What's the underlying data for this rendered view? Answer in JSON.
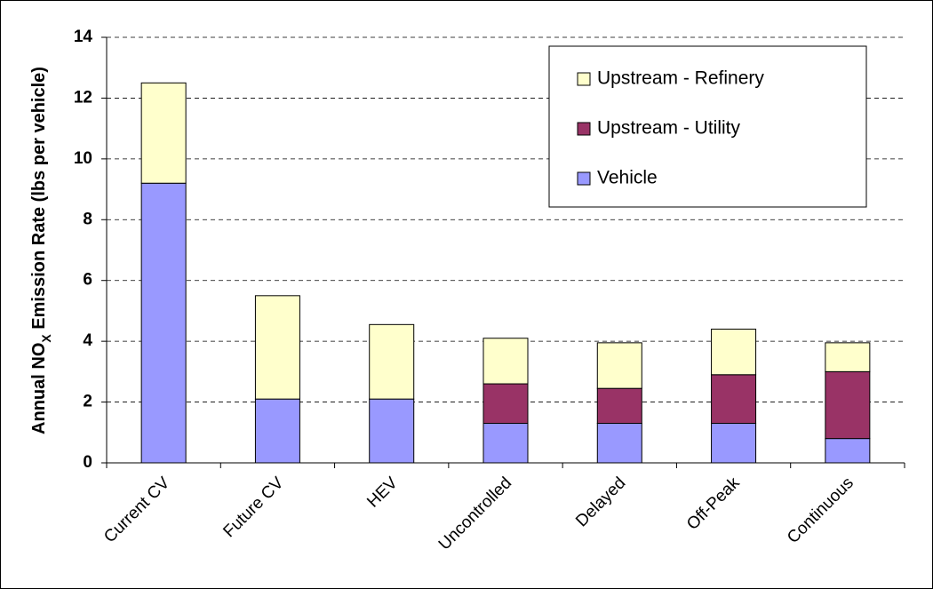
{
  "chart_data": {
    "type": "stacked_bar",
    "y_label_parts": [
      "Annual NO",
      "X",
      " Emission Rate (lbs per vehicle)"
    ],
    "categories": [
      "Current CV",
      "Future CV",
      "HEV",
      "Uncontrolled",
      "Delayed",
      "Off-Peak",
      "Continuous"
    ],
    "series": [
      {
        "name": "Vehicle",
        "color": "#9999ff",
        "values": [
          9.2,
          2.1,
          2.1,
          1.3,
          1.3,
          1.3,
          0.8
        ]
      },
      {
        "name": "Upstream - Utility",
        "color": "#993366",
        "values": [
          0,
          0,
          0,
          1.3,
          1.15,
          1.6,
          2.2
        ]
      },
      {
        "name": "Upstream - Refinery",
        "color": "#ffffcc",
        "values": [
          3.3,
          3.4,
          2.45,
          1.5,
          1.5,
          1.5,
          0.95
        ]
      }
    ],
    "ylim": [
      0,
      14
    ],
    "yticks": [
      0,
      2,
      4,
      6,
      8,
      10,
      12,
      14
    ],
    "grid": true,
    "legend": "top-right"
  }
}
